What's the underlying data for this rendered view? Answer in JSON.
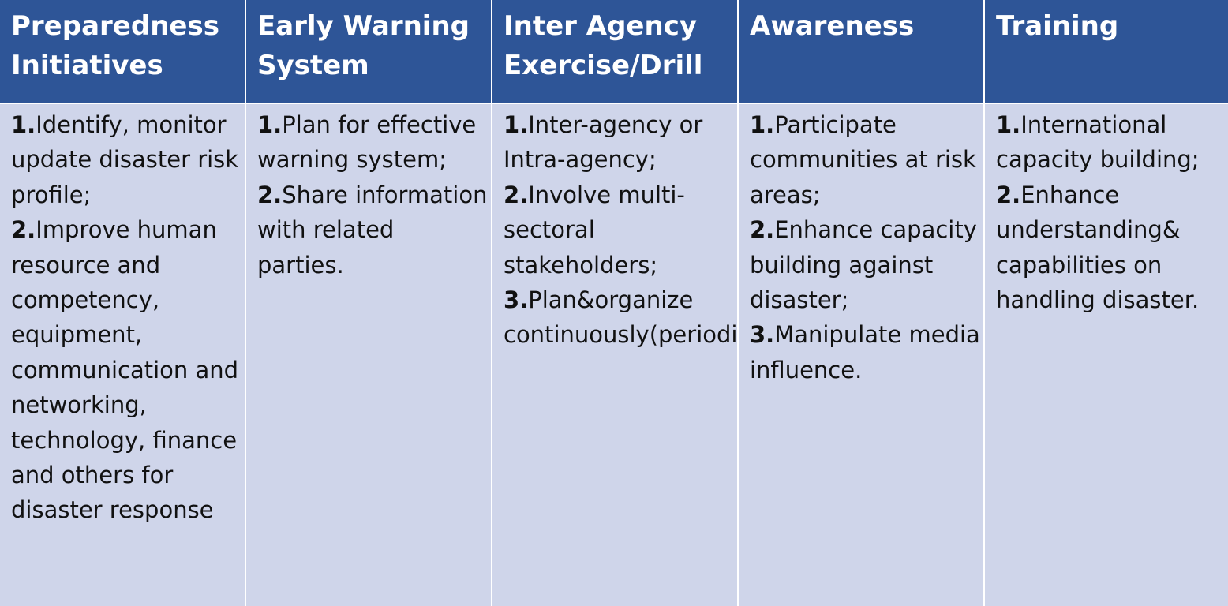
{
  "columns": [
    {
      "header": "Preparedness Initiatives",
      "items": [
        {
          "num": "1.",
          "text": "Identify, monitor update disaster risk profile;"
        },
        {
          "num": "2.",
          "text": "Improve human resource and competency, equipment, communication and networking, technology, finance and others for disaster response"
        }
      ]
    },
    {
      "header": "Early Warning System",
      "items": [
        {
          "num": "1.",
          "text": "Plan for effective warning system;"
        },
        {
          "num": "2.",
          "text": "Share information with related parties."
        }
      ]
    },
    {
      "header": "Inter Agency Exercise/Drill",
      "items": [
        {
          "num": "1.",
          "text": "Inter-agency or Intra-agency;"
        },
        {
          "num": "2.",
          "text": "Involve multi-sectoral stakeholders;"
        },
        {
          "num": "3.",
          "text": "Plan&organize continuously(periodically)."
        }
      ]
    },
    {
      "header": "Awareness",
      "items": [
        {
          "num": "1.",
          "text": "Participate communities at risk areas;"
        },
        {
          "num": "2.",
          "text": "Enhance capacity building against disaster;"
        },
        {
          "num": "3.",
          "text": "Manipulate media influence."
        }
      ]
    },
    {
      "header": "Training",
      "items": [
        {
          "num": "1.",
          "text": "International capacity building;"
        },
        {
          "num": "2.",
          "text": "Enhance understanding& capabilities on handling disaster."
        }
      ]
    }
  ],
  "colors": {
    "header_bg": "#2e5597",
    "body_bg": "#cfd5ea",
    "header_text": "#ffffff",
    "body_text": "#111111"
  }
}
